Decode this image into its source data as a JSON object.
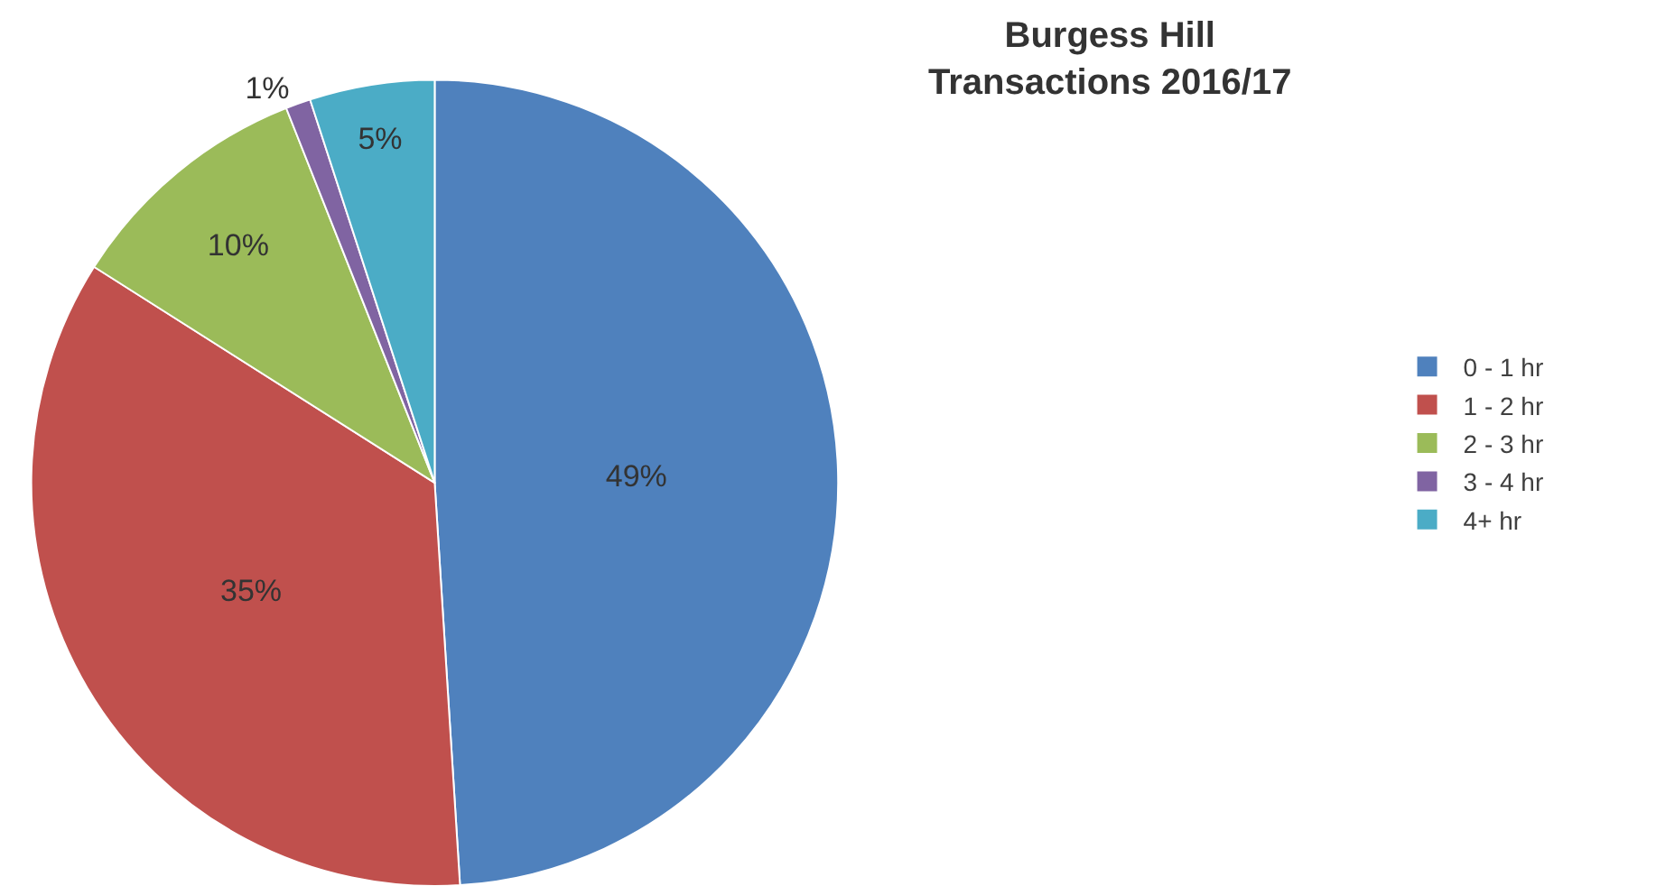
{
  "chart_data": {
    "type": "pie",
    "title": "Burgess Hill\nTransactions 2016/17",
    "categories": [
      "0 - 1 hr",
      "1 - 2 hr",
      "2 - 3 hr",
      "3 - 4 hr",
      "4+ hr"
    ],
    "values": [
      49,
      35,
      10,
      1,
      5
    ],
    "colors": [
      "#4f81bd",
      "#c0504d",
      "#9bbb59",
      "#8064a2",
      "#4bacc6"
    ],
    "value_labels": [
      "49%",
      "35%",
      "10%",
      "1%",
      "5%"
    ],
    "legend": "right"
  }
}
